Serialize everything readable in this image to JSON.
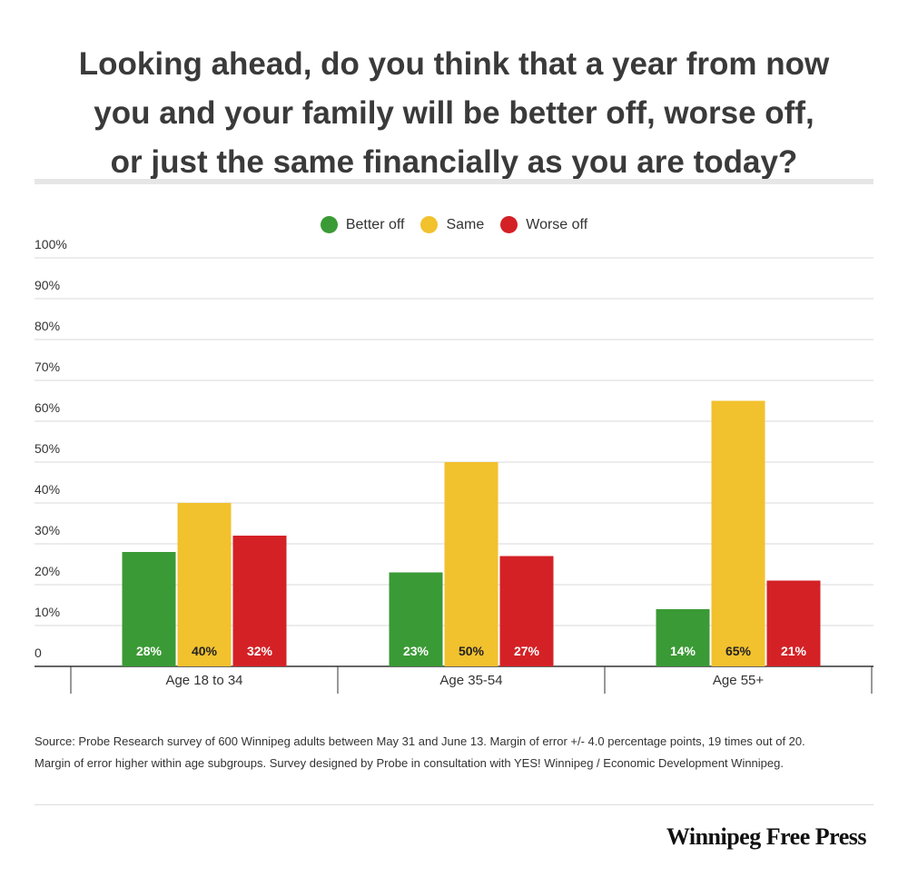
{
  "title_lines": [
    "Looking ahead, do you think that a year from now",
    "you and your family will be better off, worse off,",
    "or just the same financially as you are today?"
  ],
  "legend": [
    {
      "label": "Better off",
      "color": "#3a9a35"
    },
    {
      "label": "Same",
      "color": "#f2c12e"
    },
    {
      "label": "Worse off",
      "color": "#d42126"
    }
  ],
  "chart_data": {
    "type": "bar",
    "categories": [
      "Age 18 to 34",
      "Age 35-54",
      "Age 55+"
    ],
    "series": [
      {
        "name": "Better off",
        "color": "#3a9a35",
        "values": [
          28,
          23,
          14
        ],
        "labels": [
          "28%",
          "23%",
          "14%"
        ]
      },
      {
        "name": "Same",
        "color": "#f2c12e",
        "values": [
          40,
          50,
          65
        ],
        "labels": [
          "40%",
          "50%",
          "65%"
        ]
      },
      {
        "name": "Worse off",
        "color": "#d42126",
        "values": [
          32,
          27,
          21
        ],
        "labels": [
          "32%",
          "27%",
          "21%"
        ]
      }
    ],
    "ylim": [
      0,
      100
    ],
    "yticks": [
      0,
      10,
      20,
      30,
      40,
      50,
      60,
      70,
      80,
      90,
      100
    ],
    "ytick_labels": [
      "0",
      "10%",
      "20%",
      "30%",
      "40%",
      "50%",
      "60%",
      "70%",
      "80%",
      "90%",
      "100%"
    ],
    "grid": true,
    "legend_position": "top-center"
  },
  "source_lines": [
    "Source: Probe Research survey of 600 Winnipeg adults between May 31 and June 13. Margin of error +/- 4.0 percentage points, 19 times out of 20.",
    "Margin of error higher within age subgroups. Survey designed by Probe in consultation with YES! Winnipeg / Economic Development Winnipeg."
  ],
  "brand": "Winnipeg Free Press"
}
